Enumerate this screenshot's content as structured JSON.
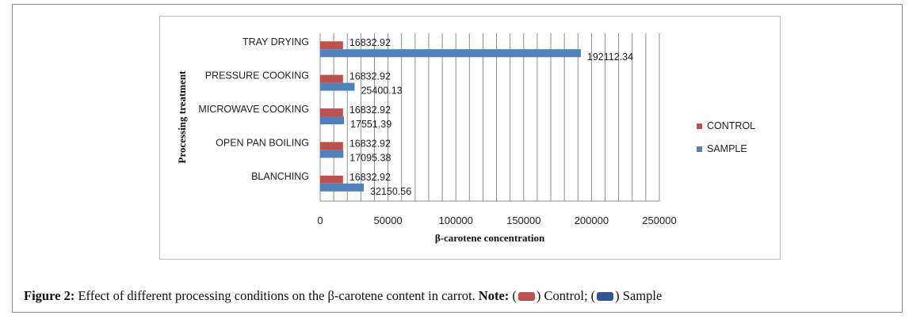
{
  "chart_data": {
    "type": "bar",
    "orientation": "horizontal",
    "categories": [
      "BLANCHING",
      "OPEN PAN BOILING",
      "MICROWAVE COOKING",
      "PRESSURE COOKING",
      "TRAY DRYING"
    ],
    "series": [
      {
        "name": "CONTROL",
        "color": "#c0504d",
        "values": [
          16832.92,
          16832.92,
          16832.92,
          16832.92,
          16832.92
        ],
        "labels": [
          "16832.92",
          "16832.92",
          "16832.92",
          "16832.92",
          "16832.92"
        ]
      },
      {
        "name": "SAMPLE",
        "color": "#4f81bd",
        "values": [
          32150.56,
          17095.38,
          17551.39,
          25400.13,
          192112.34
        ],
        "labels": [
          "32150.56",
          "17095.38",
          "17551.39",
          "25400.13",
          "192112.34"
        ]
      }
    ],
    "xlabel": "β-carotene  concentration",
    "ylabel": "Processing treatment",
    "xlim": [
      0,
      250000
    ],
    "xticks": [
      "0",
      "50000",
      "100000",
      "150000",
      "200000",
      "250000"
    ],
    "grid": "vertical",
    "legend_position": "right"
  },
  "caption": {
    "label": "Figure 2:",
    "text": " Effect of different processing conditions on the β-carotene content in carrot. ",
    "note_label": "Note:",
    "open_control": " (",
    "control_text": ") Control; (",
    "sample_text": ") Sample"
  }
}
